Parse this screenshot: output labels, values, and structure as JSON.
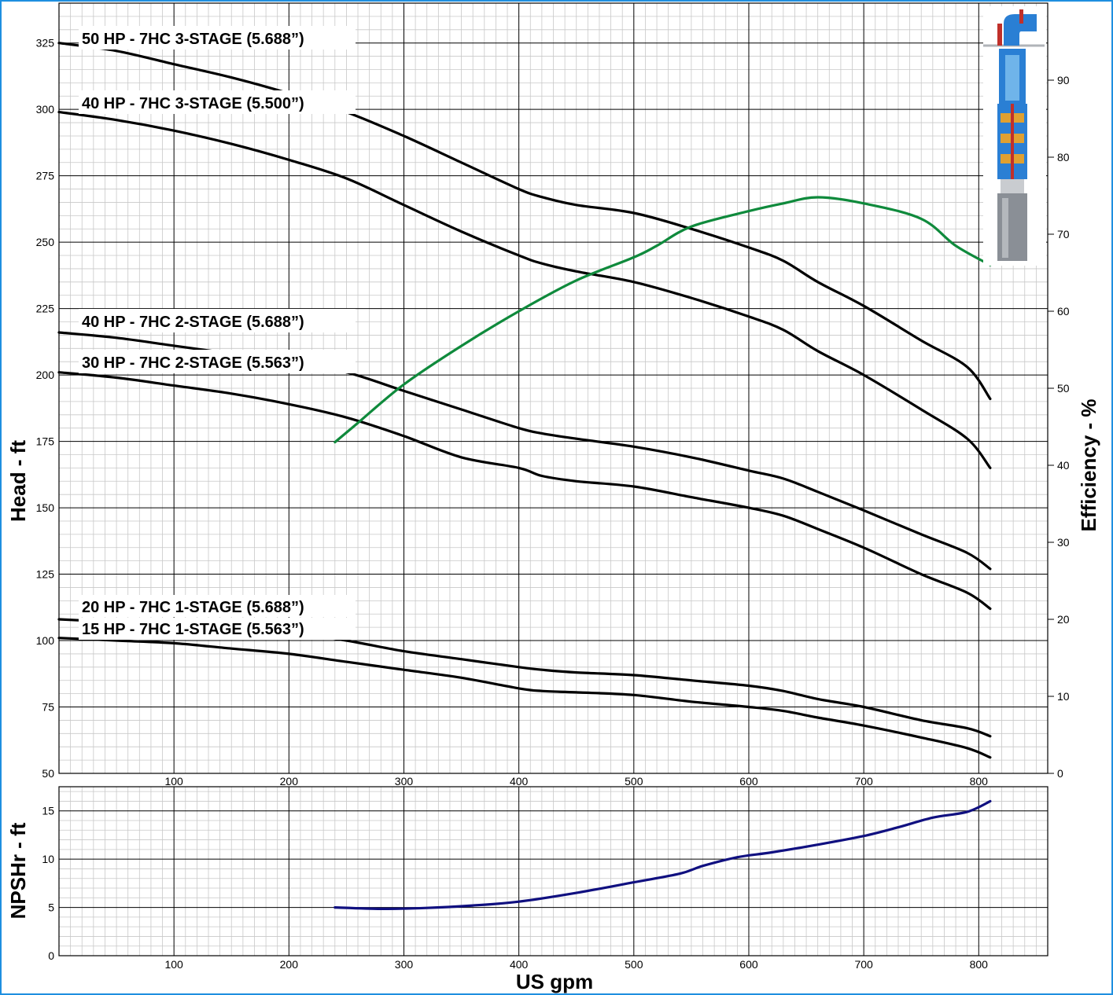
{
  "colors": {
    "frame_border": "#1e8fe0",
    "grid_major": "#000000",
    "grid_minor": "#c8c8c8",
    "head_curves": "#000000",
    "efficiency_curve": "#0f8a3c",
    "npshr_curve": "#101080",
    "pump_body": "#2a7fd4",
    "pump_motor": "#8a8f96"
  },
  "illustration": {
    "name": "submersible-pump-cutaway"
  },
  "chart_data": [
    {
      "type": "line",
      "name": "head-and-efficiency",
      "xlabel": "",
      "ylabel": "Head - ft",
      "y2label": "Efficiency - %",
      "xlim": [
        0,
        860
      ],
      "ylim": [
        50,
        340
      ],
      "y2lim": [
        0,
        100
      ],
      "x_ticks": [
        "100",
        "200",
        "300",
        "400",
        "500",
        "600",
        "700",
        "800"
      ],
      "y_ticks": [
        "50",
        "75",
        "100",
        "125",
        "150",
        "175",
        "200",
        "225",
        "250",
        "275",
        "300",
        "325"
      ],
      "y2_ticks": [
        "0",
        "10",
        "20",
        "30",
        "40",
        "50",
        "60",
        "70",
        "80",
        "90"
      ],
      "grid": true,
      "series": [
        {
          "name": "50 HP - 7HC 3-STAGE (5.688”)",
          "axis": "head",
          "color": "#000000",
          "points": [
            [
              0,
              325
            ],
            [
              50,
              322
            ],
            [
              100,
              317
            ],
            [
              150,
              312
            ],
            [
              200,
              306
            ],
            [
              250,
              299
            ],
            [
              300,
              290
            ],
            [
              350,
              280
            ],
            [
              400,
              270
            ],
            [
              420,
              267
            ],
            [
              450,
              264
            ],
            [
              500,
              261
            ],
            [
              550,
              255
            ],
            [
              600,
              248
            ],
            [
              630,
              243
            ],
            [
              660,
              235
            ],
            [
              700,
              226
            ],
            [
              750,
              213
            ],
            [
              790,
              203
            ],
            [
              810,
              191
            ]
          ]
        },
        {
          "name": "40 HP - 7HC 3-STAGE (5.500”)",
          "axis": "head",
          "color": "#000000",
          "points": [
            [
              0,
              299
            ],
            [
              50,
              296
            ],
            [
              100,
              292
            ],
            [
              150,
              287
            ],
            [
              200,
              281
            ],
            [
              250,
              274
            ],
            [
              300,
              264
            ],
            [
              350,
              254
            ],
            [
              400,
              245
            ],
            [
              420,
              242
            ],
            [
              450,
              239
            ],
            [
              500,
              235
            ],
            [
              550,
              229
            ],
            [
              600,
              222
            ],
            [
              630,
              217
            ],
            [
              660,
              209
            ],
            [
              700,
              200
            ],
            [
              750,
              187
            ],
            [
              790,
              176
            ],
            [
              810,
              165
            ]
          ]
        },
        {
          "name": "40 HP - 7HC 2-STAGE (5.688”)",
          "axis": "head",
          "color": "#000000",
          "points": [
            [
              0,
              216
            ],
            [
              50,
              214
            ],
            [
              100,
              211
            ],
            [
              150,
              208
            ],
            [
              200,
              205
            ],
            [
              250,
              201
            ],
            [
              300,
              194
            ],
            [
              350,
              187
            ],
            [
              400,
              180
            ],
            [
              420,
              178
            ],
            [
              450,
              176
            ],
            [
              500,
              173
            ],
            [
              550,
              169
            ],
            [
              600,
              164
            ],
            [
              630,
              161
            ],
            [
              660,
              156
            ],
            [
              700,
              149
            ],
            [
              750,
              140
            ],
            [
              790,
              133
            ],
            [
              810,
              127
            ]
          ]
        },
        {
          "name": "30 HP - 7HC 2-STAGE (5.563”)",
          "axis": "head",
          "color": "#000000",
          "points": [
            [
              0,
              201
            ],
            [
              50,
              199
            ],
            [
              100,
              196
            ],
            [
              150,
              193
            ],
            [
              200,
              189
            ],
            [
              250,
              184
            ],
            [
              300,
              177
            ],
            [
              350,
              169
            ],
            [
              400,
              165
            ],
            [
              420,
              162
            ],
            [
              450,
              160
            ],
            [
              500,
              158
            ],
            [
              550,
              154
            ],
            [
              600,
              150
            ],
            [
              630,
              147
            ],
            [
              660,
              142
            ],
            [
              700,
              135
            ],
            [
              750,
              125
            ],
            [
              790,
              118
            ],
            [
              810,
              112
            ]
          ]
        },
        {
          "name": "20 HP - 7HC 1-STAGE (5.688”)",
          "axis": "head",
          "color": "#000000",
          "points": [
            [
              0,
              108
            ],
            [
              50,
              107
            ],
            [
              100,
              106
            ],
            [
              150,
              105
            ],
            [
              200,
              103
            ],
            [
              250,
              100
            ],
            [
              300,
              96
            ],
            [
              350,
              93
            ],
            [
              400,
              90
            ],
            [
              420,
              89
            ],
            [
              450,
              88
            ],
            [
              500,
              87
            ],
            [
              550,
              85
            ],
            [
              600,
              83
            ],
            [
              630,
              81
            ],
            [
              660,
              78
            ],
            [
              700,
              75
            ],
            [
              750,
              70
            ],
            [
              790,
              67
            ],
            [
              810,
              64
            ]
          ]
        },
        {
          "name": "15 HP - 7HC 1-STAGE (5.563”)",
          "axis": "head",
          "color": "#000000",
          "points": [
            [
              0,
              101
            ],
            [
              50,
              100
            ],
            [
              100,
              99
            ],
            [
              150,
              97
            ],
            [
              200,
              95
            ],
            [
              250,
              92
            ],
            [
              300,
              89
            ],
            [
              350,
              86
            ],
            [
              400,
              82
            ],
            [
              420,
              81
            ],
            [
              450,
              80.5
            ],
            [
              500,
              79.5
            ],
            [
              550,
              77
            ],
            [
              600,
              75
            ],
            [
              630,
              73.5
            ],
            [
              660,
              71
            ],
            [
              700,
              68
            ],
            [
              750,
              63.5
            ],
            [
              790,
              59.5
            ],
            [
              810,
              56
            ]
          ]
        },
        {
          "name": "",
          "axis": "efficiency",
          "color": "#0f8a3c",
          "points": [
            [
              240,
              43
            ],
            [
              260,
              45.5
            ],
            [
              300,
              50.5
            ],
            [
              350,
              55.5
            ],
            [
              400,
              60
            ],
            [
              450,
              64
            ],
            [
              500,
              67
            ],
            [
              520,
              68.5
            ],
            [
              550,
              71
            ],
            [
              600,
              73
            ],
            [
              630,
              74
            ],
            [
              660,
              74.8
            ],
            [
              700,
              74
            ],
            [
              750,
              72
            ],
            [
              780,
              68.5
            ],
            [
              810,
              66
            ]
          ]
        }
      ]
    },
    {
      "type": "line",
      "name": "npshr",
      "xlabel": "US gpm",
      "ylabel": "NPSHr - ft",
      "xlim": [
        0,
        860
      ],
      "ylim": [
        0,
        17.5
      ],
      "x_ticks": [
        "100",
        "200",
        "300",
        "400",
        "500",
        "600",
        "700",
        "800"
      ],
      "y_ticks": [
        "0",
        "5",
        "10",
        "15"
      ],
      "grid": true,
      "series": [
        {
          "name": "",
          "color": "#101080",
          "points": [
            [
              240,
              5
            ],
            [
              280,
              4.85
            ],
            [
              320,
              4.95
            ],
            [
              360,
              5.2
            ],
            [
              400,
              5.6
            ],
            [
              450,
              6.5
            ],
            [
              500,
              7.6
            ],
            [
              540,
              8.5
            ],
            [
              560,
              9.3
            ],
            [
              590,
              10.2
            ],
            [
              620,
              10.7
            ],
            [
              660,
              11.5
            ],
            [
              700,
              12.4
            ],
            [
              730,
              13.3
            ],
            [
              760,
              14.3
            ],
            [
              790,
              14.9
            ],
            [
              810,
              16
            ]
          ]
        }
      ]
    }
  ]
}
